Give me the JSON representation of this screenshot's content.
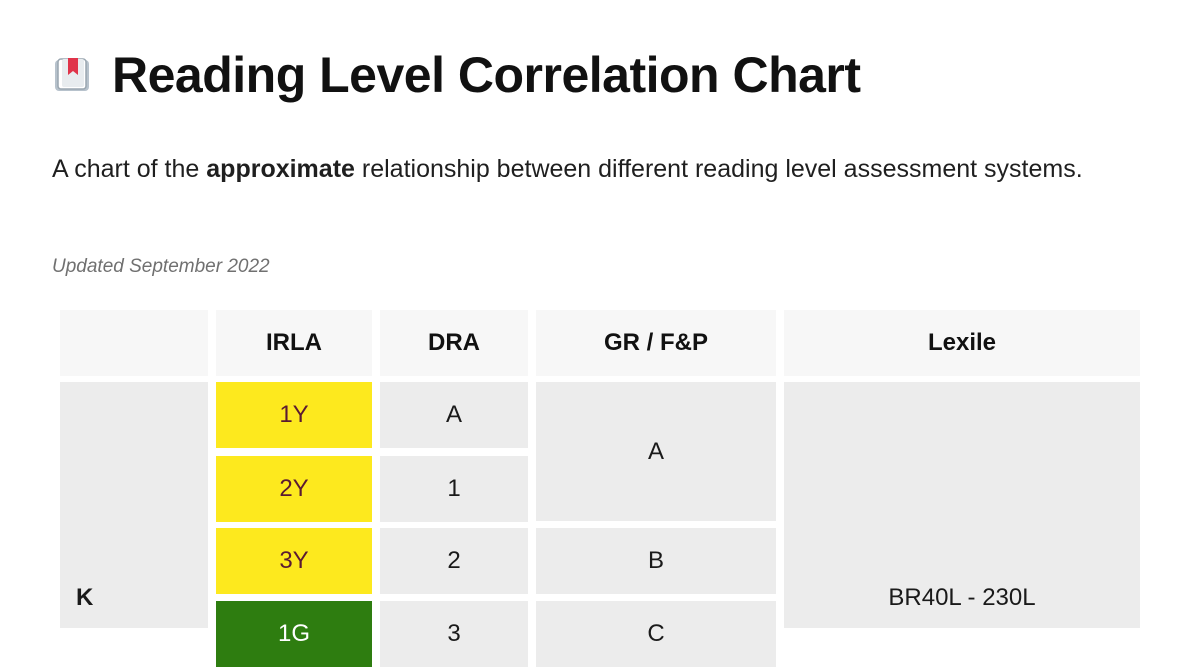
{
  "page": {
    "title": "Reading Level Correlation Chart",
    "description_prefix": "A chart of the ",
    "description_bold": "approximate",
    "description_suffix": " relationship between different reading level assessment systems.",
    "updated": "Updated September 2022",
    "icon": "book-icon"
  },
  "table": {
    "headers": [
      "",
      "IRLA",
      "DRA",
      "GR / F&P",
      "Lexile"
    ],
    "grade": "K",
    "irla": [
      "1Y",
      "2Y",
      "3Y",
      "1G"
    ],
    "dra": [
      "A",
      "1",
      "2",
      "3"
    ],
    "grfp": [
      "A",
      "B",
      "C"
    ],
    "lexile": "BR40L - 230L",
    "colors": {
      "irla_yellow": "#fde91e",
      "irla_green": "#2e7d10",
      "cell_bg": "#ececec",
      "header_bg": "#f7f7f7"
    }
  }
}
